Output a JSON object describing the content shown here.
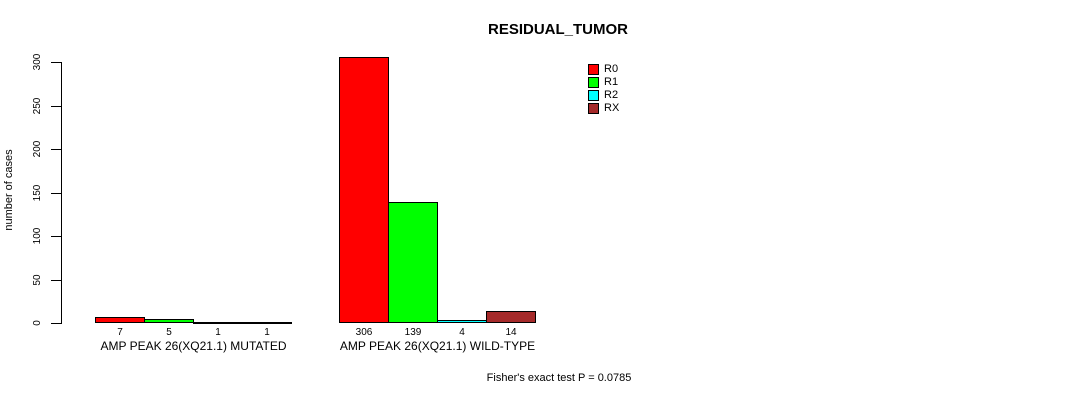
{
  "title": "RESIDUAL_TUMOR",
  "footer": "Fisher's exact test P = 0.0785",
  "y_axis": {
    "label": "number of cases",
    "ticks": [
      0,
      50,
      100,
      150,
      200,
      250,
      300
    ]
  },
  "legend": {
    "position": "topright",
    "entries": [
      {
        "label": "R0",
        "color": "#FF0000"
      },
      {
        "label": "R1",
        "color": "#00FF00"
      },
      {
        "label": "R2",
        "color": "#00FFFF"
      },
      {
        "label": "RX",
        "color": "#A52A2A"
      }
    ]
  },
  "chart_data": {
    "type": "bar",
    "title": "RESIDUAL_TUMOR",
    "xlabel": "",
    "ylabel": "number of cases",
    "ylim": [
      0,
      300
    ],
    "grid": false,
    "legend_position": "topright",
    "categories": [
      "AMP PEAK 26(XQ21.1) MUTATED",
      "AMP PEAK 26(XQ21.1) WILD-TYPE"
    ],
    "series": [
      {
        "name": "R0",
        "color": "#FF0000",
        "values": [
          7,
          306
        ]
      },
      {
        "name": "R1",
        "color": "#00FF00",
        "values": [
          5,
          139
        ]
      },
      {
        "name": "R2",
        "color": "#00FFFF",
        "values": [
          1,
          4
        ]
      },
      {
        "name": "RX",
        "color": "#A52A2A",
        "values": [
          1,
          14
        ]
      }
    ],
    "annotation": "Fisher's exact test P = 0.0785"
  }
}
